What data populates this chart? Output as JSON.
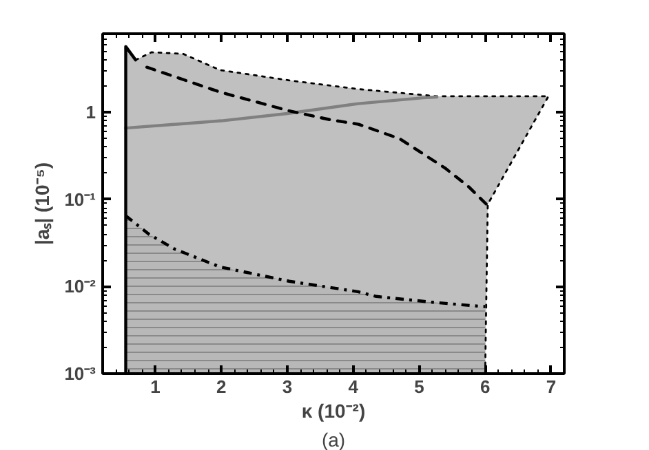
{
  "chart_data": {
    "type": "line",
    "xlabel": "κ (10⁻²)",
    "ylabel": "|aₛ| (10⁻⁵)",
    "annotations": [
      "(a)"
    ],
    "log": "y",
    "grid": false,
    "xlim": [
      0.2,
      7.2
    ],
    "ylim": [
      0.001,
      8
    ],
    "xticks": [
      1,
      2,
      3,
      4,
      5,
      6,
      7
    ],
    "yticks": [
      {
        "value": 0.001,
        "label": "10⁻³"
      },
      {
        "value": 0.01,
        "label": "10⁻²"
      },
      {
        "value": 0.1,
        "label": "10⁻¹"
      },
      1
    ],
    "series": [
      {
        "color": "#000000",
        "line_style": "dotted",
        "x": [
          0.55,
          0.7,
          0.94,
          1.42,
          1.98,
          3.03,
          4.08,
          5.27,
          6.0,
          6.04,
          6.96
        ],
        "values": [
          5.7,
          4.0,
          4.9,
          4.7,
          3.06,
          2.33,
          1.85,
          1.53,
          1.53,
          1.53,
          1.53
        ],
        "upper": [
          5.7,
          4.0,
          4.9,
          4.7,
          3.06,
          2.33,
          1.85,
          1.53,
          1.53,
          1.53,
          1.53
        ],
        "lower": [
          0.001,
          0.001,
          0.001,
          0.001,
          0.001,
          0.001,
          0.001,
          0.001,
          0.001,
          0.088,
          1.53
        ]
      },
      {
        "color": "#000000",
        "line_style": "dotted",
        "x": [
          6.0,
          6.04,
          6.96
        ],
        "values": [
          0.001,
          0.088,
          1.53
        ]
      },
      {
        "type": "area",
        "color": "#8a8a8a",
        "line_style": "dashdot",
        "x": [
          0.55,
          0.9,
          1.29,
          1.98,
          3.03,
          4.08,
          4.35,
          5.2,
          5.96,
          6.0
        ],
        "values": [
          0.065,
          0.04,
          0.027,
          0.0168,
          0.0115,
          0.0087,
          0.0077,
          0.0066,
          0.0059,
          0.0059
        ]
      },
      {
        "color": "#808080",
        "line_style": "solid",
        "x": [
          0.55,
          2.0,
          3.0,
          4.08,
          5.06,
          5.27
        ],
        "values": [
          0.66,
          0.8,
          0.97,
          1.26,
          1.47,
          1.5
        ]
      },
      {
        "color": "#000000",
        "line_style": "dashed",
        "x": [
          0.87,
          1.98,
          3.03,
          3.66,
          4.08,
          4.7,
          5.39,
          5.75,
          6.04
        ],
        "values": [
          3.3,
          1.71,
          1.04,
          0.82,
          0.73,
          0.5,
          0.23,
          0.14,
          0.085
        ]
      },
      {
        "color": "#000000",
        "line_style": "solid",
        "x": [
          0.55,
          0.55,
          0.7
        ],
        "values": [
          0.001,
          5.7,
          4.0
        ]
      }
    ]
  }
}
